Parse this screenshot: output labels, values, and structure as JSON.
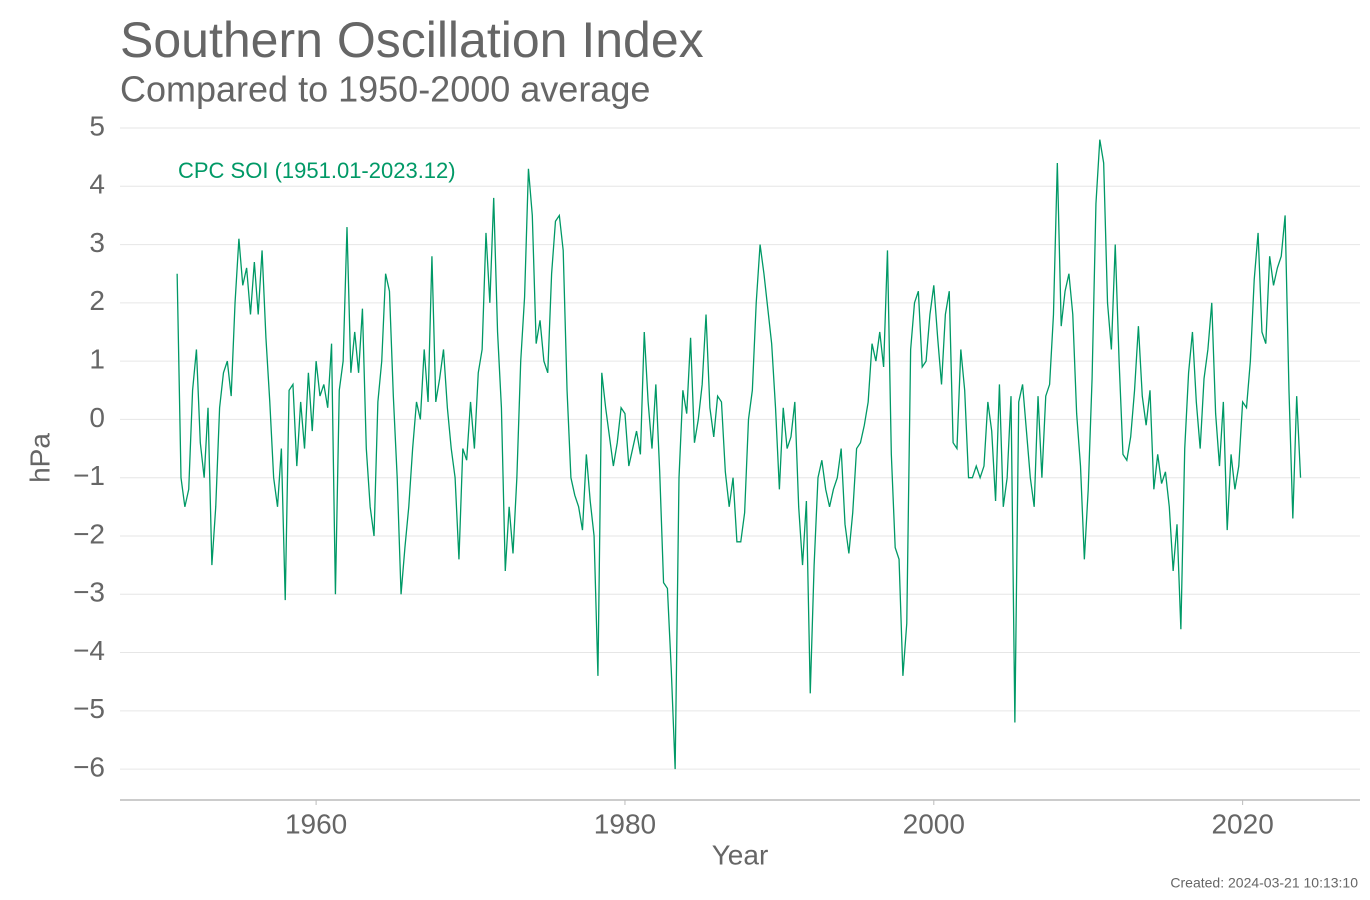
{
  "chart_data": {
    "type": "line",
    "title": "Southern Oscillation Index",
    "subtitle": "Compared to 1950-2000 average",
    "x_label": "Year",
    "y_label": "hPa",
    "annotation": "CPC SOI (1951.01-2023.12)",
    "footer": "Created: 2024-03-21 10:13:10",
    "grid": true,
    "xlim": [
      1947.3,
      2027.6
    ],
    "ylim": [
      -6.53,
      5
    ],
    "xticks": [
      1960,
      1980,
      2000,
      2020
    ],
    "yticks": [
      5,
      4,
      3,
      2,
      1,
      0,
      {
        "value": -1,
        "label": "−1"
      },
      {
        "value": -2,
        "label": "−2"
      },
      {
        "value": -3,
        "label": "−3"
      },
      {
        "value": -4,
        "label": "−4"
      },
      {
        "value": -5,
        "label": "−5"
      },
      {
        "value": -6,
        "label": "−6"
      }
    ],
    "x": [
      1951,
      1951.25,
      1951.5,
      1951.75,
      1952,
      1952.25,
      1952.5,
      1952.75,
      1953,
      1953.25,
      1953.5,
      1953.75,
      1954,
      1954.25,
      1954.5,
      1954.75,
      1955,
      1955.25,
      1955.5,
      1955.75,
      1956,
      1956.25,
      1956.5,
      1956.75,
      1957,
      1957.25,
      1957.5,
      1957.75,
      1958,
      1958.25,
      1958.5,
      1958.75,
      1959,
      1959.25,
      1959.5,
      1959.75,
      1960,
      1960.25,
      1960.5,
      1960.75,
      1961,
      1961.25,
      1961.5,
      1961.75,
      1962,
      1962.25,
      1962.5,
      1962.75,
      1963,
      1963.25,
      1963.5,
      1963.75,
      1964,
      1964.25,
      1964.5,
      1964.75,
      1965,
      1965.25,
      1965.5,
      1965.75,
      1966,
      1966.25,
      1966.5,
      1966.75,
      1967,
      1967.25,
      1967.5,
      1967.75,
      1968,
      1968.25,
      1968.5,
      1968.75,
      1969,
      1969.25,
      1969.5,
      1969.75,
      1970,
      1970.25,
      1970.5,
      1970.75,
      1971,
      1971.25,
      1971.5,
      1971.75,
      1972,
      1972.25,
      1972.5,
      1972.75,
      1973,
      1973.25,
      1973.5,
      1973.75,
      1974,
      1974.25,
      1974.5,
      1974.75,
      1975,
      1975.25,
      1975.5,
      1975.75,
      1976,
      1976.25,
      1976.5,
      1976.75,
      1977,
      1977.25,
      1977.5,
      1977.75,
      1978,
      1978.25,
      1978.5,
      1978.75,
      1979,
      1979.25,
      1979.5,
      1979.75,
      1980,
      1980.25,
      1980.5,
      1980.75,
      1981,
      1981.25,
      1981.5,
      1981.75,
      1982,
      1982.25,
      1982.5,
      1982.75,
      1983,
      1983.25,
      1983.5,
      1983.75,
      1984,
      1984.25,
      1984.5,
      1984.75,
      1985,
      1985.25,
      1985.5,
      1985.75,
      1986,
      1986.25,
      1986.5,
      1986.75,
      1987,
      1987.25,
      1987.5,
      1987.75,
      1988,
      1988.25,
      1988.5,
      1988.75,
      1989,
      1989.25,
      1989.5,
      1989.75,
      1990,
      1990.25,
      1990.5,
      1990.75,
      1991,
      1991.25,
      1991.5,
      1991.75,
      1992,
      1992.25,
      1992.5,
      1992.75,
      1993,
      1993.25,
      1993.5,
      1993.75,
      1994,
      1994.25,
      1994.5,
      1994.75,
      1995,
      1995.25,
      1995.5,
      1995.75,
      1996,
      1996.25,
      1996.5,
      1996.75,
      1997,
      1997.25,
      1997.5,
      1997.75,
      1998,
      1998.25,
      1998.5,
      1998.75,
      1999,
      1999.25,
      1999.5,
      1999.75,
      2000,
      2000.25,
      2000.5,
      2000.75,
      2001,
      2001.25,
      2001.5,
      2001.75,
      2002,
      2002.25,
      2002.5,
      2002.75,
      2003,
      2003.25,
      2003.5,
      2003.75,
      2004,
      2004.25,
      2004.5,
      2004.75,
      2005,
      2005.25,
      2005.5,
      2005.75,
      2006,
      2006.25,
      2006.5,
      2006.75,
      2007,
      2007.25,
      2007.5,
      2007.75,
      2008,
      2008.25,
      2008.5,
      2008.75,
      2009,
      2009.25,
      2009.5,
      2009.75,
      2010,
      2010.25,
      2010.5,
      2010.75,
      2011,
      2011.25,
      2011.5,
      2011.75,
      2012,
      2012.25,
      2012.5,
      2012.75,
      2013,
      2013.25,
      2013.5,
      2013.75,
      2014,
      2014.25,
      2014.5,
      2014.75,
      2015,
      2015.25,
      2015.5,
      2015.75,
      2016,
      2016.25,
      2016.5,
      2016.75,
      2017,
      2017.25,
      2017.5,
      2017.75,
      2018,
      2018.25,
      2018.5,
      2018.75,
      2019,
      2019.25,
      2019.5,
      2019.75,
      2020,
      2020.25,
      2020.5,
      2020.75,
      2021,
      2021.25,
      2021.5,
      2021.75,
      2022,
      2022.25,
      2022.5,
      2022.75,
      2023,
      2023.25,
      2023.5,
      2023.75
    ],
    "series": [
      {
        "name": "CPC SOI",
        "color": "#009966",
        "values": [
          2.5,
          -1.0,
          -1.5,
          -1.2,
          0.5,
          1.2,
          -0.4,
          -1.0,
          0.2,
          -2.5,
          -1.5,
          0.2,
          0.8,
          1.0,
          0.4,
          2.0,
          3.1,
          2.3,
          2.6,
          1.8,
          2.7,
          1.8,
          2.9,
          1.4,
          0.3,
          -1.0,
          -1.5,
          -0.5,
          -3.1,
          0.5,
          0.6,
          -0.8,
          0.3,
          -0.5,
          0.8,
          -0.2,
          1.0,
          0.4,
          0.6,
          0.2,
          1.3,
          -3.0,
          0.5,
          1.0,
          3.3,
          0.8,
          1.5,
          0.8,
          1.9,
          -0.5,
          -1.5,
          -2.0,
          0.3,
          1.0,
          2.5,
          2.2,
          0.4,
          -1.0,
          -3.0,
          -2.2,
          -1.5,
          -0.5,
          0.3,
          0.0,
          1.2,
          0.3,
          2.8,
          0.3,
          0.7,
          1.2,
          0.2,
          -0.5,
          -1.0,
          -2.4,
          -0.5,
          -0.7,
          0.3,
          -0.5,
          0.8,
          1.2,
          3.2,
          2.0,
          3.8,
          1.5,
          0.2,
          -2.6,
          -1.5,
          -2.3,
          -1.0,
          1.0,
          2.1,
          4.3,
          3.5,
          1.3,
          1.7,
          1.0,
          0.8,
          2.5,
          3.4,
          3.5,
          2.9,
          0.5,
          -1.0,
          -1.3,
          -1.5,
          -1.9,
          -0.6,
          -1.4,
          -2.0,
          -4.4,
          0.8,
          0.2,
          -0.3,
          -0.8,
          -0.4,
          0.2,
          0.1,
          -0.8,
          -0.5,
          -0.2,
          -0.6,
          1.5,
          0.3,
          -0.5,
          0.6,
          -0.9,
          -2.8,
          -2.9,
          -4.3,
          -6.0,
          -1.0,
          0.5,
          0.1,
          1.4,
          -0.4,
          0.0,
          0.6,
          1.8,
          0.2,
          -0.3,
          0.4,
          0.3,
          -0.9,
          -1.5,
          -1.0,
          -2.1,
          -2.1,
          -1.6,
          0.0,
          0.5,
          2.0,
          3.0,
          2.5,
          1.9,
          1.3,
          0.2,
          -1.2,
          0.2,
          -0.5,
          -0.3,
          0.3,
          -1.5,
          -2.5,
          -1.4,
          -4.7,
          -2.5,
          -1.0,
          -0.7,
          -1.2,
          -1.5,
          -1.2,
          -1.0,
          -0.5,
          -1.8,
          -2.3,
          -1.6,
          -0.5,
          -0.4,
          -0.1,
          0.3,
          1.3,
          1.0,
          1.5,
          0.9,
          2.9,
          -0.6,
          -2.2,
          -2.4,
          -4.4,
          -3.5,
          1.2,
          2.0,
          2.2,
          0.9,
          1.0,
          1.8,
          2.3,
          1.4,
          0.6,
          1.8,
          2.2,
          -0.4,
          -0.5,
          1.2,
          0.5,
          -1.0,
          -1.0,
          -0.8,
          -1.0,
          -0.8,
          0.3,
          -0.2,
          -1.4,
          0.6,
          -1.5,
          -1.0,
          0.4,
          -5.2,
          0.3,
          0.6,
          -0.2,
          -1.0,
          -1.5,
          0.4,
          -1.0,
          0.4,
          0.6,
          1.8,
          4.4,
          1.6,
          2.2,
          2.5,
          1.8,
          0.1,
          -0.8,
          -2.4,
          -1.2,
          0.7,
          3.7,
          4.8,
          4.4,
          2.0,
          1.2,
          3.0,
          1.0,
          -0.6,
          -0.7,
          -0.3,
          0.5,
          1.6,
          0.4,
          -0.1,
          0.5,
          -1.2,
          -0.6,
          -1.1,
          -0.9,
          -1.5,
          -2.6,
          -1.8,
          -3.6,
          -0.5,
          0.8,
          1.5,
          0.3,
          -0.5,
          0.7,
          1.2,
          2.0,
          0.1,
          -0.8,
          0.3,
          -1.9,
          -0.6,
          -1.2,
          -0.8,
          0.3,
          0.2,
          1.0,
          2.4,
          3.2,
          1.5,
          1.3,
          2.8,
          2.3,
          2.6,
          2.8,
          3.5,
          0.5,
          -1.7,
          0.4,
          -1.0
        ]
      }
    ]
  }
}
